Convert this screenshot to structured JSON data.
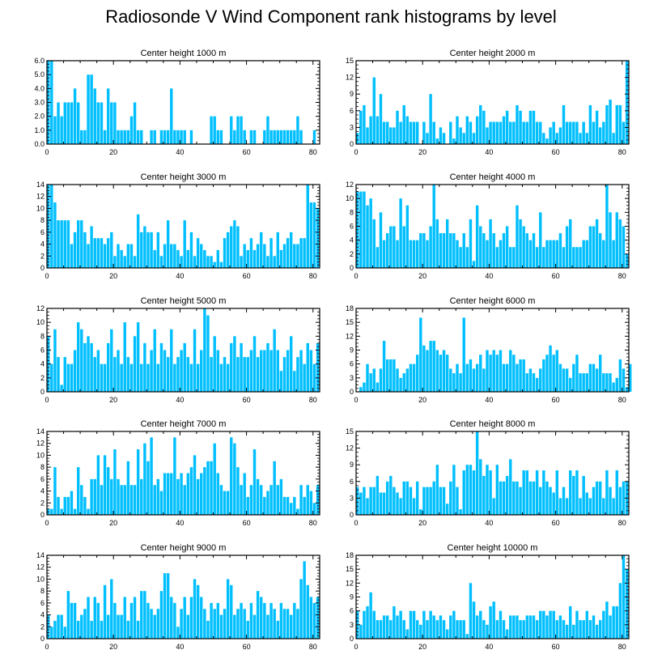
{
  "page_title": "Radiosonde V Wind Component rank histograms by level",
  "colors": {
    "bar": "#00bfff",
    "axis": "#000000"
  },
  "chart_data": [
    {
      "type": "bar",
      "title": "Center height 1000 m",
      "xlim": [
        0,
        82
      ],
      "ylim": [
        0,
        6
      ],
      "yticks": [
        0.0,
        1.0,
        2.0,
        3.0,
        4.0,
        5.0,
        6.0
      ],
      "ytick_labels": [
        "0.0",
        "1.0",
        "2.0",
        "3.0",
        "4.0",
        "5.0",
        "6.0"
      ],
      "xticks": [
        0,
        20,
        40,
        60,
        80
      ],
      "values": [
        6,
        6,
        2,
        3,
        2,
        3,
        3,
        3,
        4,
        3,
        1,
        1,
        5,
        5,
        4,
        3,
        3,
        1,
        4,
        3,
        3,
        1,
        1,
        1,
        1,
        2,
        3,
        1,
        1,
        0,
        0,
        1,
        1,
        0,
        1,
        1,
        1,
        4,
        1,
        1,
        1,
        1,
        0,
        1,
        0,
        0,
        0,
        0,
        0,
        2,
        2,
        1,
        1,
        0,
        0,
        2,
        1,
        2,
        2,
        1,
        0,
        1,
        1,
        0,
        0,
        1,
        2,
        1,
        1,
        1,
        1,
        1,
        1,
        1,
        1,
        2,
        1,
        0,
        0,
        0,
        1,
        0
      ]
    },
    {
      "type": "bar",
      "title": "Center height 2000 m",
      "xlim": [
        0,
        82
      ],
      "ylim": [
        0,
        15
      ],
      "yticks": [
        0,
        3,
        6,
        9,
        12,
        15
      ],
      "ytick_labels": [
        "0",
        "3",
        "6",
        "9",
        "12",
        "15"
      ],
      "xticks": [
        0,
        20,
        40,
        60,
        80
      ],
      "values": [
        2,
        6,
        7,
        3,
        5,
        12,
        5,
        9,
        4,
        4,
        3,
        3,
        6,
        4,
        7,
        5,
        4,
        4,
        4,
        0,
        4,
        2,
        9,
        4,
        1,
        3,
        2,
        0,
        4,
        1,
        5,
        3,
        2,
        5,
        4,
        2,
        5,
        7,
        6,
        3,
        4,
        4,
        4,
        4,
        5,
        6,
        4,
        4,
        7,
        6,
        4,
        4,
        6,
        6,
        4,
        4,
        2,
        1,
        3,
        4,
        2,
        3,
        7,
        4,
        4,
        4,
        4,
        2,
        4,
        2,
        7,
        4,
        6,
        3,
        4,
        7,
        8,
        2,
        7,
        7,
        4,
        15
      ]
    },
    {
      "type": "bar",
      "title": "Center height 3000 m",
      "xlim": [
        0,
        82
      ],
      "ylim": [
        0,
        14
      ],
      "yticks": [
        0,
        2,
        4,
        6,
        8,
        10,
        12,
        14
      ],
      "ytick_labels": [
        "0",
        "2",
        "4",
        "6",
        "8",
        "10",
        "12",
        "14"
      ],
      "xticks": [
        0,
        20,
        40,
        60,
        80
      ],
      "values": [
        14,
        14,
        11,
        8,
        8,
        8,
        8,
        4,
        6,
        8,
        8,
        6,
        4,
        7,
        5,
        5,
        5,
        4,
        5,
        6,
        2,
        4,
        3,
        2,
        4,
        4,
        2,
        9,
        6,
        7,
        6,
        6,
        3,
        6,
        2,
        4,
        8,
        4,
        4,
        3,
        2,
        8,
        3,
        6,
        2,
        5,
        4,
        3,
        2,
        2,
        1,
        3,
        1,
        5,
        6,
        7,
        8,
        7,
        2,
        4,
        3,
        5,
        3,
        4,
        6,
        4,
        2,
        5,
        2,
        6,
        3,
        4,
        5,
        6,
        4,
        4,
        5,
        5,
        14,
        11,
        11,
        10
      ]
    },
    {
      "type": "bar",
      "title": "Center height 4000 m",
      "xlim": [
        0,
        82
      ],
      "ylim": [
        0,
        12
      ],
      "yticks": [
        0,
        2,
        4,
        6,
        8,
        10,
        12
      ],
      "ytick_labels": [
        "0",
        "2",
        "4",
        "6",
        "8",
        "10",
        "12"
      ],
      "xticks": [
        0,
        20,
        40,
        60,
        80
      ],
      "values": [
        11,
        11,
        11,
        9,
        10,
        7,
        3,
        8,
        4,
        5,
        6,
        6,
        4,
        10,
        6,
        9,
        4,
        4,
        4,
        5,
        5,
        4,
        6,
        12,
        7,
        5,
        5,
        7,
        5,
        5,
        4,
        3,
        5,
        3,
        7,
        1,
        9,
        6,
        5,
        4,
        7,
        5,
        3,
        4,
        5,
        6,
        3,
        3,
        9,
        7,
        6,
        5,
        4,
        5,
        3,
        8,
        3,
        4,
        4,
        4,
        4,
        5,
        3,
        6,
        7,
        3,
        3,
        3,
        4,
        4,
        6,
        6,
        7,
        5,
        4,
        12,
        8,
        4,
        8,
        7,
        6,
        2
      ]
    },
    {
      "type": "bar",
      "title": "Center height 5000 m",
      "xlim": [
        0,
        82
      ],
      "ylim": [
        0,
        12
      ],
      "yticks": [
        0,
        2,
        4,
        6,
        8,
        10,
        12
      ],
      "ytick_labels": [
        "0",
        "2",
        "4",
        "6",
        "8",
        "10",
        "12"
      ],
      "xticks": [
        0,
        20,
        40,
        60,
        80
      ],
      "values": [
        8,
        4,
        9,
        5,
        1,
        5,
        4,
        4,
        6,
        10,
        9,
        7,
        8,
        7,
        5,
        6,
        4,
        4,
        7,
        9,
        5,
        6,
        4,
        10,
        5,
        4,
        8,
        10,
        4,
        7,
        4,
        6,
        9,
        4,
        7,
        6,
        5,
        9,
        4,
        5,
        6,
        7,
        5,
        4,
        9,
        4,
        6,
        12,
        11,
        5,
        8,
        6,
        4,
        5,
        4,
        7,
        8,
        5,
        7,
        5,
        5,
        6,
        8,
        5,
        6,
        6,
        7,
        6,
        9,
        6,
        3,
        5,
        6,
        8,
        3,
        5,
        6,
        4,
        7,
        6,
        4,
        7
      ]
    },
    {
      "type": "bar",
      "title": "Center height 6000 m",
      "xlim": [
        0,
        82
      ],
      "ylim": [
        0,
        18
      ],
      "yticks": [
        0,
        3,
        6,
        9,
        12,
        15,
        18
      ],
      "ytick_labels": [
        "0",
        "3",
        "6",
        "9",
        "12",
        "15",
        "18"
      ],
      "xticks": [
        0,
        20,
        40,
        60,
        80
      ],
      "values": [
        0,
        1,
        2,
        6,
        4,
        5,
        2,
        5,
        11,
        7,
        7,
        7,
        5,
        3,
        4,
        5,
        6,
        6,
        8,
        16,
        10,
        9,
        11,
        11,
        9,
        8,
        9,
        8,
        5,
        4,
        6,
        4,
        16,
        6,
        7,
        5,
        6,
        8,
        5,
        9,
        8,
        9,
        8,
        9,
        6,
        6,
        9,
        8,
        6,
        7,
        7,
        4,
        5,
        4,
        3,
        5,
        7,
        8,
        10,
        8,
        9,
        6,
        5,
        5,
        3,
        6,
        8,
        4,
        4,
        4,
        6,
        6,
        5,
        8,
        4,
        4,
        4,
        2,
        3,
        7,
        5,
        1,
        6
      ]
    },
    {
      "type": "bar",
      "title": "Center height 7000 m",
      "xlim": [
        0,
        82
      ],
      "ylim": [
        0,
        14
      ],
      "yticks": [
        0,
        2,
        4,
        6,
        8,
        10,
        12,
        14
      ],
      "ytick_labels": [
        "0",
        "2",
        "4",
        "6",
        "8",
        "10",
        "12",
        "14"
      ],
      "xticks": [
        0,
        20,
        40,
        60,
        80
      ],
      "values": [
        1,
        1,
        8,
        3,
        1,
        3,
        3,
        4,
        1,
        8,
        5,
        3,
        1,
        6,
        6,
        10,
        5,
        10,
        8,
        6,
        11,
        6,
        5,
        5,
        9,
        5,
        5,
        11,
        6,
        12,
        9,
        13,
        5,
        6,
        4,
        7,
        7,
        7,
        13,
        6,
        7,
        5,
        7,
        8,
        10,
        6,
        7,
        8,
        9,
        9,
        12,
        7,
        5,
        4,
        4,
        13,
        12,
        8,
        5,
        7,
        3,
        5,
        11,
        6,
        5,
        3,
        4,
        5,
        9,
        5,
        6,
        3,
        3,
        2,
        3,
        1,
        5,
        3,
        5,
        4,
        2,
        5
      ]
    },
    {
      "type": "bar",
      "title": "Center height 8000 m",
      "xlim": [
        0,
        82
      ],
      "ylim": [
        0,
        15
      ],
      "yticks": [
        0,
        3,
        6,
        9,
        12,
        15
      ],
      "ytick_labels": [
        "0",
        "3",
        "6",
        "9",
        "12",
        "15"
      ],
      "xticks": [
        0,
        20,
        40,
        60,
        80
      ],
      "values": [
        5,
        4,
        5,
        3,
        5,
        5,
        7,
        4,
        4,
        6,
        7,
        5,
        4,
        3,
        6,
        6,
        5,
        3,
        6,
        1,
        5,
        5,
        5,
        6,
        9,
        5,
        5,
        2,
        6,
        9,
        5,
        1,
        8,
        9,
        9,
        8,
        15,
        10,
        7,
        9,
        8,
        3,
        9,
        6,
        6,
        7,
        10,
        6,
        6,
        5,
        8,
        8,
        6,
        6,
        8,
        5,
        8,
        6,
        5,
        4,
        8,
        3,
        5,
        3,
        8,
        7,
        8,
        3,
        7,
        4,
        3,
        5,
        6,
        6,
        3,
        8,
        5,
        3,
        8,
        5,
        6,
        6
      ]
    },
    {
      "type": "bar",
      "title": "Center height 9000 m",
      "xlim": [
        0,
        82
      ],
      "ylim": [
        0,
        14
      ],
      "yticks": [
        0,
        2,
        4,
        6,
        8,
        10,
        12,
        14
      ],
      "ytick_labels": [
        "0",
        "2",
        "4",
        "6",
        "8",
        "10",
        "12",
        "14"
      ],
      "xticks": [
        0,
        20,
        40,
        60,
        80
      ],
      "values": [
        4,
        2,
        3,
        4,
        4,
        2,
        8,
        6,
        6,
        3,
        4,
        5,
        7,
        3,
        7,
        6,
        3,
        9,
        4,
        10,
        6,
        4,
        4,
        7,
        3,
        6,
        7,
        3,
        8,
        8,
        6,
        5,
        4,
        5,
        8,
        11,
        11,
        7,
        6,
        2,
        5,
        7,
        4,
        7,
        10,
        9,
        7,
        5,
        3,
        6,
        5,
        6,
        4,
        5,
        10,
        9,
        4,
        5,
        6,
        5,
        3,
        6,
        4,
        8,
        7,
        6,
        4,
        6,
        5,
        3,
        6,
        5,
        5,
        4,
        6,
        5,
        10,
        13,
        9,
        7,
        6,
        7
      ]
    },
    {
      "type": "bar",
      "title": "Center height 10000 m",
      "xlim": [
        0,
        82
      ],
      "ylim": [
        0,
        18
      ],
      "yticks": [
        0,
        3,
        6,
        9,
        12,
        15,
        18
      ],
      "ytick_labels": [
        "0",
        "3",
        "6",
        "9",
        "12",
        "15",
        "18"
      ],
      "xticks": [
        0,
        20,
        40,
        60,
        80
      ],
      "values": [
        6,
        3,
        6,
        7,
        10,
        6,
        4,
        4,
        5,
        5,
        4,
        7,
        5,
        6,
        4,
        2,
        6,
        6,
        4,
        3,
        6,
        4,
        6,
        5,
        4,
        5,
        4,
        2,
        5,
        6,
        4,
        4,
        4,
        1,
        12,
        8,
        5,
        6,
        4,
        3,
        7,
        8,
        4,
        6,
        4,
        2,
        5,
        5,
        5,
        4,
        4,
        5,
        5,
        5,
        4,
        6,
        6,
        5,
        6,
        6,
        4,
        5,
        4,
        3,
        7,
        3,
        6,
        4,
        4,
        6,
        4,
        5,
        3,
        4,
        6,
        8,
        5,
        7,
        7,
        12,
        18,
        15
      ]
    }
  ]
}
